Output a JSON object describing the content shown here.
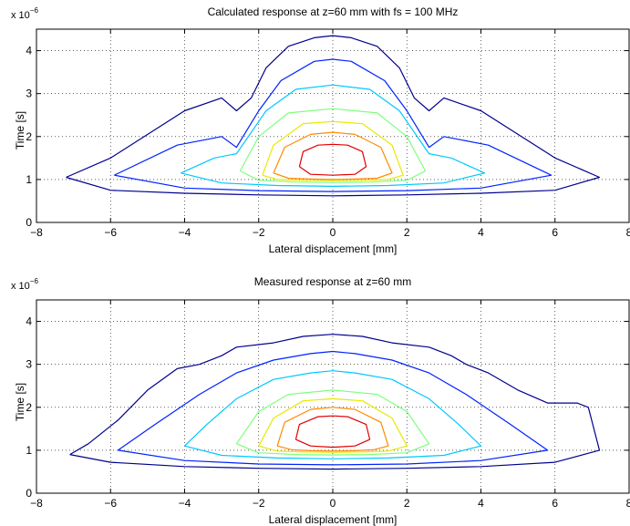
{
  "chart_data": [
    {
      "type": "contour",
      "title": "Calculated response at z=60 mm with fs = 100 MHz",
      "xlabel": "Lateral displacement [mm]",
      "ylabel": "Time [s]",
      "exponent_label": "x 10",
      "exponent": "−6",
      "xlim": [
        -8,
        8
      ],
      "ylim": [
        0,
        4.5
      ],
      "xticks": [
        -8,
        -6,
        -4,
        -2,
        0,
        2,
        4,
        6,
        8
      ],
      "yticks": [
        0,
        1,
        2,
        3,
        4
      ],
      "grid": true,
      "levels": [
        {
          "color": "#00008f",
          "x": [
            -7.2,
            -6.0,
            -4.0,
            -3.0,
            -2.6,
            -2.2,
            -1.8,
            -1.2,
            -0.5,
            0.0,
            0.5,
            1.2,
            1.8,
            2.2,
            2.6,
            3.0,
            4.0,
            6.0,
            7.2,
            6.0,
            4.0,
            2.0,
            0.0,
            -2.0,
            -4.0,
            -6.0,
            -7.2
          ],
          "y": [
            1.05,
            1.5,
            2.6,
            2.9,
            2.6,
            2.9,
            3.6,
            4.1,
            4.3,
            4.35,
            4.3,
            4.1,
            3.6,
            2.9,
            2.6,
            2.9,
            2.6,
            1.5,
            1.05,
            0.75,
            0.68,
            0.64,
            0.62,
            0.64,
            0.68,
            0.75,
            1.05
          ]
        },
        {
          "color": "#0022ff",
          "x": [
            -5.9,
            -4.2,
            -3.0,
            -2.6,
            -2.0,
            -1.4,
            -0.5,
            0.0,
            0.5,
            1.4,
            2.0,
            2.6,
            3.0,
            4.2,
            5.9,
            4.0,
            2.0,
            0.0,
            -2.0,
            -4.0,
            -5.9
          ],
          "y": [
            1.1,
            1.8,
            2.0,
            1.75,
            2.6,
            3.3,
            3.75,
            3.8,
            3.75,
            3.3,
            2.6,
            1.75,
            2.0,
            1.8,
            1.1,
            0.8,
            0.74,
            0.72,
            0.74,
            0.8,
            1.1
          ]
        },
        {
          "color": "#00c8ff",
          "x": [
            -4.1,
            -3.2,
            -2.6,
            -1.8,
            -1.0,
            0.0,
            1.0,
            1.8,
            2.6,
            3.2,
            4.1,
            3.0,
            1.5,
            0.0,
            -1.5,
            -3.0,
            -4.1
          ],
          "y": [
            1.15,
            1.5,
            1.6,
            2.6,
            3.1,
            3.2,
            3.1,
            2.6,
            1.6,
            1.5,
            1.15,
            0.92,
            0.86,
            0.84,
            0.86,
            0.92,
            1.15
          ]
        },
        {
          "color": "#7dff7d",
          "x": [
            -2.5,
            -2.0,
            -1.2,
            0.0,
            1.2,
            2.0,
            2.5,
            2.0,
            1.0,
            0.0,
            -1.0,
            -2.0,
            -2.5
          ],
          "y": [
            1.2,
            2.0,
            2.55,
            2.65,
            2.55,
            2.0,
            1.2,
            0.98,
            0.94,
            0.93,
            0.94,
            0.98,
            1.2
          ]
        },
        {
          "color": "#e8e800",
          "x": [
            -1.9,
            -1.6,
            -0.8,
            0.0,
            0.8,
            1.6,
            1.9,
            1.5,
            0.8,
            0.0,
            -0.8,
            -1.5,
            -1.9
          ],
          "y": [
            1.1,
            1.8,
            2.3,
            2.35,
            2.3,
            1.8,
            1.1,
            1.0,
            0.98,
            0.97,
            0.98,
            1.0,
            1.1
          ]
        },
        {
          "color": "#ff8a00",
          "x": [
            -1.6,
            -1.3,
            -0.6,
            0.0,
            0.6,
            1.3,
            1.6,
            1.2,
            0.6,
            0.0,
            -0.6,
            -1.2,
            -1.6
          ],
          "y": [
            1.15,
            1.75,
            2.05,
            2.1,
            2.05,
            1.75,
            1.15,
            1.03,
            1.01,
            1.0,
            1.01,
            1.03,
            1.15
          ]
        },
        {
          "color": "#e00000",
          "x": [
            -0.9,
            -0.8,
            -0.4,
            0.0,
            0.4,
            0.8,
            0.9,
            0.6,
            0.0,
            -0.6,
            -0.9
          ],
          "y": [
            1.3,
            1.65,
            1.8,
            1.82,
            1.8,
            1.65,
            1.3,
            1.12,
            1.1,
            1.12,
            1.3
          ]
        }
      ]
    },
    {
      "type": "contour",
      "title": "Measured response at z=60 mm",
      "xlabel": "Lateral displacement [mm]",
      "ylabel": "Time [s]",
      "exponent_label": "x 10",
      "exponent": "−6",
      "xlim": [
        -8,
        8
      ],
      "ylim": [
        0,
        4.5
      ],
      "xticks": [
        -8,
        -6,
        -4,
        -2,
        0,
        2,
        4,
        6,
        8
      ],
      "yticks": [
        0,
        1,
        2,
        3,
        4
      ],
      "grid": true,
      "levels": [
        {
          "color": "#00008f",
          "x": [
            -7.1,
            -6.6,
            -5.8,
            -5.0,
            -4.2,
            -3.6,
            -3.0,
            -2.6,
            -1.6,
            -0.8,
            0.0,
            0.8,
            1.6,
            2.6,
            3.2,
            3.6,
            4.2,
            5.0,
            5.8,
            6.6,
            6.9,
            7.2,
            6.0,
            4.0,
            2.0,
            0.0,
            -2.0,
            -4.0,
            -6.0,
            -7.1
          ],
          "y": [
            0.9,
            1.15,
            1.7,
            2.4,
            2.9,
            3.0,
            3.2,
            3.4,
            3.5,
            3.65,
            3.7,
            3.65,
            3.5,
            3.4,
            3.2,
            3.0,
            2.8,
            2.4,
            2.1,
            2.1,
            2.0,
            1.0,
            0.72,
            0.62,
            0.58,
            0.56,
            0.58,
            0.62,
            0.72,
            0.9
          ]
        },
        {
          "color": "#0022ff",
          "x": [
            -5.8,
            -4.8,
            -3.6,
            -2.6,
            -1.6,
            -0.6,
            0.0,
            0.6,
            1.6,
            2.6,
            3.6,
            4.8,
            5.8,
            4.0,
            2.0,
            0.0,
            -2.0,
            -4.0,
            -5.8
          ],
          "y": [
            1.0,
            1.6,
            2.3,
            2.8,
            3.1,
            3.25,
            3.3,
            3.25,
            3.1,
            2.8,
            2.3,
            1.6,
            1.0,
            0.76,
            0.68,
            0.66,
            0.68,
            0.76,
            1.0
          ]
        },
        {
          "color": "#00c8ff",
          "x": [
            -4.0,
            -3.4,
            -2.6,
            -1.6,
            -0.6,
            0.0,
            0.6,
            1.6,
            2.6,
            3.4,
            4.0,
            3.0,
            1.5,
            0.0,
            -1.5,
            -3.0,
            -4.0
          ],
          "y": [
            1.1,
            1.6,
            2.2,
            2.65,
            2.8,
            2.85,
            2.8,
            2.65,
            2.2,
            1.6,
            1.1,
            0.88,
            0.82,
            0.8,
            0.82,
            0.88,
            1.1
          ]
        },
        {
          "color": "#7dff7d",
          "x": [
            -2.6,
            -2.0,
            -1.2,
            0.0,
            1.2,
            2.0,
            2.6,
            2.0,
            1.0,
            0.0,
            -1.0,
            -2.0,
            -2.6
          ],
          "y": [
            1.15,
            1.9,
            2.3,
            2.4,
            2.3,
            1.9,
            1.15,
            0.94,
            0.9,
            0.89,
            0.9,
            0.94,
            1.15
          ]
        },
        {
          "color": "#e8e800",
          "x": [
            -2.0,
            -1.6,
            -0.8,
            0.0,
            0.8,
            1.6,
            2.0,
            1.5,
            0.8,
            0.0,
            -0.8,
            -1.5,
            -2.0
          ],
          "y": [
            1.1,
            1.75,
            2.15,
            2.2,
            2.15,
            1.75,
            1.1,
            0.98,
            0.96,
            0.95,
            0.96,
            0.98,
            1.1
          ]
        },
        {
          "color": "#ff8a00",
          "x": [
            -1.5,
            -1.3,
            -0.6,
            0.0,
            0.6,
            1.3,
            1.5,
            1.1,
            0.6,
            0.0,
            -0.6,
            -1.1,
            -1.5
          ],
          "y": [
            1.1,
            1.65,
            1.95,
            2.0,
            1.95,
            1.65,
            1.1,
            1.01,
            0.99,
            0.98,
            0.99,
            1.01,
            1.1
          ]
        },
        {
          "color": "#e00000",
          "x": [
            -1.0,
            -0.9,
            -0.4,
            0.0,
            0.4,
            0.9,
            1.0,
            0.6,
            0.0,
            -0.6,
            -1.0
          ],
          "y": [
            1.25,
            1.6,
            1.78,
            1.8,
            1.78,
            1.6,
            1.25,
            1.1,
            1.07,
            1.1,
            1.25
          ]
        }
      ]
    }
  ]
}
